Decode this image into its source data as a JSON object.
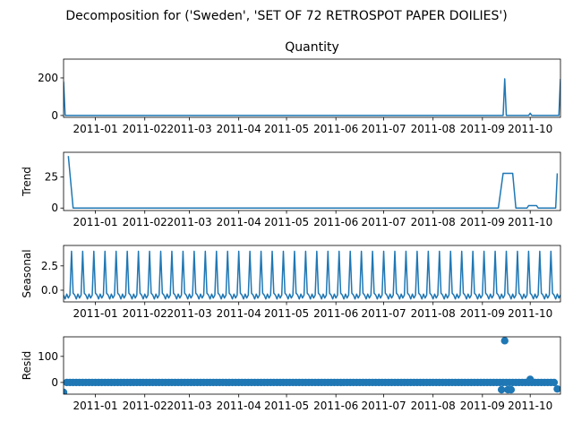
{
  "figure": {
    "suptitle": "Decomposition for ('Sweden', 'SET OF 72 RETROSPOT PAPER  DOILIES')",
    "line_color": "#1f77b4"
  },
  "chart_data": [
    {
      "type": "line",
      "name": "observed",
      "title": "Quantity",
      "ylabel": "",
      "ylim": [
        -10,
        300
      ],
      "yticks": [
        0,
        200
      ],
      "xlim": [
        "2010-12-12",
        "2011-10-20"
      ],
      "xtick_labels": [
        "2011-01",
        "2011-02",
        "2011-03",
        "2011-04",
        "2011-05",
        "2011-06",
        "2011-07",
        "2011-08",
        "2011-09",
        "2011-10"
      ],
      "x_start": "2010-12-12",
      "freq_days": 2,
      "values_spec": "observed",
      "points": [
        {
          "x": "2010-12-12",
          "y": 180
        },
        {
          "x": "2010-12-13",
          "y": 0
        },
        {
          "x": "2011-09-14",
          "y": 0
        },
        {
          "x": "2011-09-15",
          "y": 195
        },
        {
          "x": "2011-09-16",
          "y": 0
        },
        {
          "x": "2011-09-30",
          "y": 0
        },
        {
          "x": "2011-10-01",
          "y": 12
        },
        {
          "x": "2011-10-02",
          "y": 0
        },
        {
          "x": "2011-10-19",
          "y": 0
        },
        {
          "x": "2011-10-20",
          "y": 195
        }
      ]
    },
    {
      "type": "line",
      "name": "trend",
      "title": "",
      "ylabel": "Trend",
      "ylim": [
        -2,
        45
      ],
      "yticks": [
        0,
        25
      ],
      "xlim": [
        "2010-12-12",
        "2011-10-20"
      ],
      "xtick_labels": [
        "2011-01",
        "2011-02",
        "2011-03",
        "2011-04",
        "2011-05",
        "2011-06",
        "2011-07",
        "2011-08",
        "2011-09",
        "2011-10"
      ],
      "points": [
        {
          "x": "2010-12-15",
          "y": 42
        },
        {
          "x": "2010-12-18",
          "y": 0
        },
        {
          "x": "2011-09-11",
          "y": 0
        },
        {
          "x": "2011-09-14",
          "y": 28
        },
        {
          "x": "2011-09-20",
          "y": 28
        },
        {
          "x": "2011-09-22",
          "y": 0
        },
        {
          "x": "2011-09-29",
          "y": 0
        },
        {
          "x": "2011-09-30",
          "y": 2
        },
        {
          "x": "2011-10-05",
          "y": 2
        },
        {
          "x": "2011-10-06",
          "y": 0
        },
        {
          "x": "2011-10-17",
          "y": 0
        },
        {
          "x": "2011-10-18",
          "y": 28
        }
      ]
    },
    {
      "type": "line",
      "name": "seasonal",
      "title": "",
      "ylabel": "Seasonal",
      "ylim": [
        -1.2,
        4.6
      ],
      "yticks": [
        0.0,
        2.5
      ],
      "ytick_labels": [
        "0.0",
        "2.5"
      ],
      "xlim": [
        "2010-12-12",
        "2011-10-20"
      ],
      "xtick_labels": [
        "2011-01",
        "2011-02",
        "2011-03",
        "2011-04",
        "2011-05",
        "2011-06",
        "2011-07",
        "2011-08",
        "2011-09",
        "2011-10"
      ],
      "period_days": 7,
      "pattern": [
        -0.5,
        -0.9,
        -0.4,
        -0.8,
        -0.5,
        4.0,
        -0.3
      ],
      "start": "2010-12-12",
      "end": "2011-10-20"
    },
    {
      "type": "scatter",
      "name": "resid",
      "title": "",
      "ylabel": "Resid",
      "ylim": [
        -45,
        175
      ],
      "yticks": [
        0,
        100
      ],
      "xlim": [
        "2010-12-12",
        "2011-10-20"
      ],
      "xtick_labels": [
        "2011-01",
        "2011-02",
        "2011-03",
        "2011-04",
        "2011-05",
        "2011-06",
        "2011-07",
        "2011-08",
        "2011-09",
        "2011-10"
      ],
      "start": "2010-12-14",
      "end": "2011-10-19",
      "step_days": 2,
      "baseline": 0,
      "outliers": [
        {
          "x": "2010-12-12",
          "y": -38
        },
        {
          "x": "2011-09-13",
          "y": -28
        },
        {
          "x": "2011-09-15",
          "y": 160
        },
        {
          "x": "2011-09-17",
          "y": -28
        },
        {
          "x": "2011-09-19",
          "y": -28
        },
        {
          "x": "2011-10-01",
          "y": 12
        },
        {
          "x": "2011-10-18",
          "y": -25
        }
      ]
    }
  ]
}
